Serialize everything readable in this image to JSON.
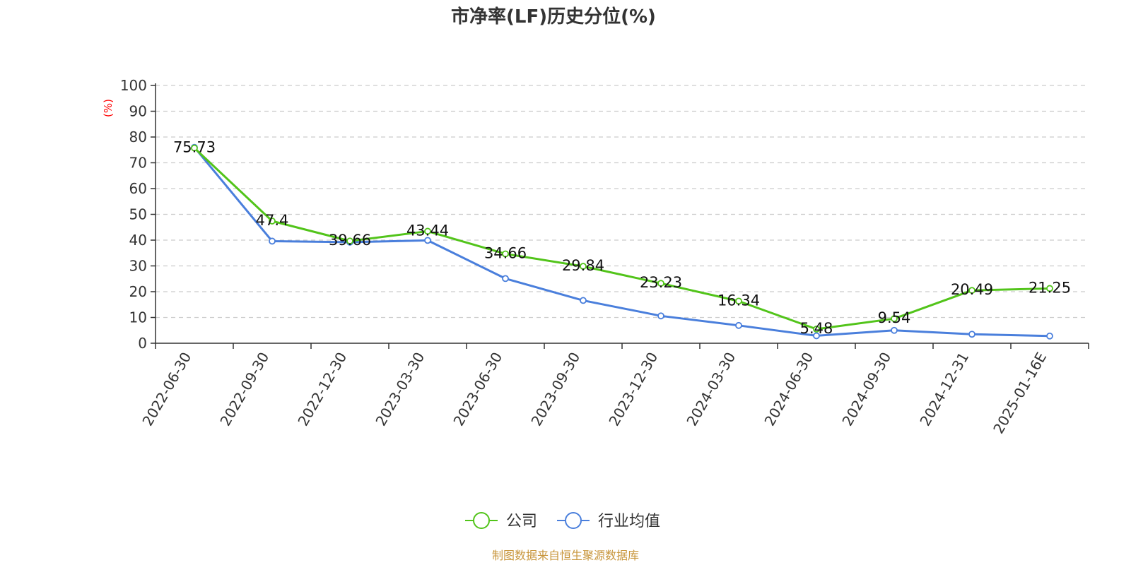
{
  "chart_data": {
    "type": "line",
    "title": "市净率(LF)历史分位(%)",
    "ylabel": "(%)",
    "xlabel": "",
    "ylim": [
      0,
      100
    ],
    "yticks": [
      0,
      10,
      20,
      30,
      40,
      50,
      60,
      70,
      80,
      90,
      100
    ],
    "grid": true,
    "legend_position": "bottom",
    "categories": [
      "2022-06-30",
      "2022-09-30",
      "2022-12-30",
      "2023-03-30",
      "2023-06-30",
      "2023-09-30",
      "2023-12-30",
      "2024-03-30",
      "2024-06-30",
      "2024-09-30",
      "2024-12-31",
      "2025-01-16E"
    ],
    "series": [
      {
        "name": "公司",
        "color": "#52c41a",
        "values": [
          75.73,
          47.4,
          39.66,
          43.44,
          34.66,
          29.84,
          23.23,
          16.34,
          5.48,
          9.54,
          20.49,
          21.25
        ],
        "data_labels": [
          "75.73",
          "47.4",
          "39.66",
          "43.44",
          "34.66",
          "29.84",
          "23.23",
          "16.34",
          "5.48",
          "9.54",
          "20.49",
          "21.25"
        ]
      },
      {
        "name": "行业均值",
        "color": "#4a7fdc",
        "values": [
          76.0,
          39.6,
          39.2,
          39.9,
          25.1,
          16.6,
          10.6,
          6.9,
          2.9,
          5.0,
          3.5,
          2.8
        ]
      }
    ]
  },
  "source": "制图数据来自恒生聚源数据库",
  "colors": {
    "ylabel": "#ff0000",
    "source": "#c8963c",
    "grid": "#cccccc",
    "axis": "#333333"
  }
}
